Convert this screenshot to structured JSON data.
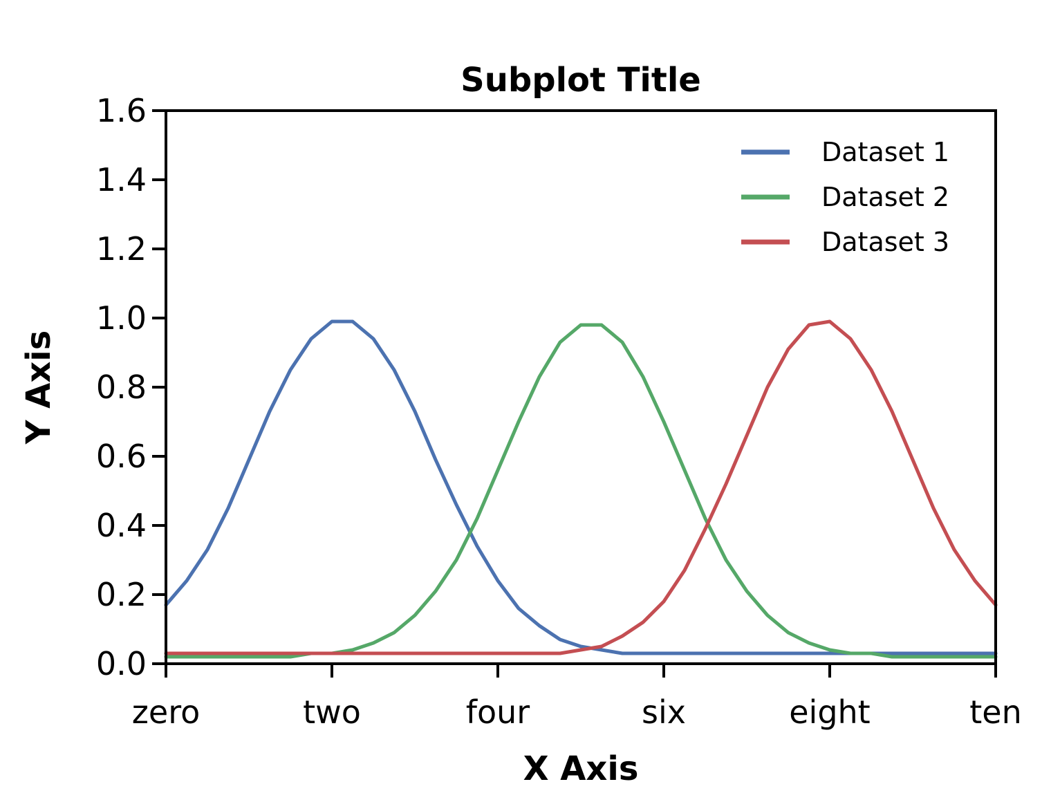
{
  "chart_data": {
    "type": "line",
    "title": "Subplot Title",
    "xlabel": "X Axis",
    "ylabel": "Y Axis",
    "xlim": [
      0,
      10
    ],
    "ylim": [
      0,
      1.6
    ],
    "xticks": [
      {
        "value": 0,
        "label": "zero"
      },
      {
        "value": 2,
        "label": "two"
      },
      {
        "value": 4,
        "label": "four"
      },
      {
        "value": 6,
        "label": "six"
      },
      {
        "value": 8,
        "label": "eight"
      },
      {
        "value": 10,
        "label": "ten"
      }
    ],
    "yticks": [
      {
        "value": 0.0,
        "label": "0.0"
      },
      {
        "value": 0.2,
        "label": "0.2"
      },
      {
        "value": 0.4,
        "label": "0.4"
      },
      {
        "value": 0.6,
        "label": "0.6"
      },
      {
        "value": 0.8,
        "label": "0.8"
      },
      {
        "value": 1.0,
        "label": "1.0"
      },
      {
        "value": 1.2,
        "label": "1.2"
      },
      {
        "value": 1.4,
        "label": "1.4"
      },
      {
        "value": 1.6,
        "label": "1.6"
      }
    ],
    "grid": false,
    "legend_position": "top-right",
    "x": [
      0.0,
      0.25,
      0.5,
      0.75,
      1.0,
      1.25,
      1.5,
      1.75,
      2.0,
      2.25,
      2.5,
      2.75,
      3.0,
      3.25,
      3.5,
      3.75,
      4.0,
      4.25,
      4.5,
      4.75,
      5.0,
      5.25,
      5.5,
      5.75,
      6.0,
      6.25,
      6.5,
      6.75,
      7.0,
      7.25,
      7.5,
      7.75,
      8.0,
      8.25,
      8.5,
      8.75,
      9.0,
      9.25,
      9.5,
      9.75,
      10.0
    ],
    "series": [
      {
        "name": "Dataset 1",
        "color": "#4c72b0",
        "values": [
          0.17,
          0.24,
          0.33,
          0.45,
          0.59,
          0.73,
          0.85,
          0.94,
          0.99,
          0.99,
          0.94,
          0.85,
          0.73,
          0.59,
          0.46,
          0.34,
          0.24,
          0.16,
          0.11,
          0.07,
          0.05,
          0.04,
          0.03,
          0.03,
          0.03,
          0.03,
          0.03,
          0.03,
          0.03,
          0.03,
          0.03,
          0.03,
          0.03,
          0.03,
          0.03,
          0.03,
          0.03,
          0.03,
          0.03,
          0.03,
          0.03
        ]
      },
      {
        "name": "Dataset 2",
        "color": "#55a868",
        "values": [
          0.02,
          0.02,
          0.02,
          0.02,
          0.02,
          0.02,
          0.02,
          0.03,
          0.03,
          0.04,
          0.06,
          0.09,
          0.14,
          0.21,
          0.3,
          0.42,
          0.56,
          0.7,
          0.83,
          0.93,
          0.98,
          0.98,
          0.93,
          0.83,
          0.7,
          0.56,
          0.42,
          0.3,
          0.21,
          0.14,
          0.09,
          0.06,
          0.04,
          0.03,
          0.03,
          0.02,
          0.02,
          0.02,
          0.02,
          0.02,
          0.02
        ]
      },
      {
        "name": "Dataset 3",
        "color": "#c44e52",
        "values": [
          0.03,
          0.03,
          0.03,
          0.03,
          0.03,
          0.03,
          0.03,
          0.03,
          0.03,
          0.03,
          0.03,
          0.03,
          0.03,
          0.03,
          0.03,
          0.03,
          0.03,
          0.03,
          0.03,
          0.03,
          0.04,
          0.05,
          0.08,
          0.12,
          0.18,
          0.27,
          0.39,
          0.52,
          0.66,
          0.8,
          0.91,
          0.98,
          0.99,
          0.94,
          0.85,
          0.73,
          0.59,
          0.45,
          0.33,
          0.24,
          0.17
        ]
      }
    ]
  }
}
